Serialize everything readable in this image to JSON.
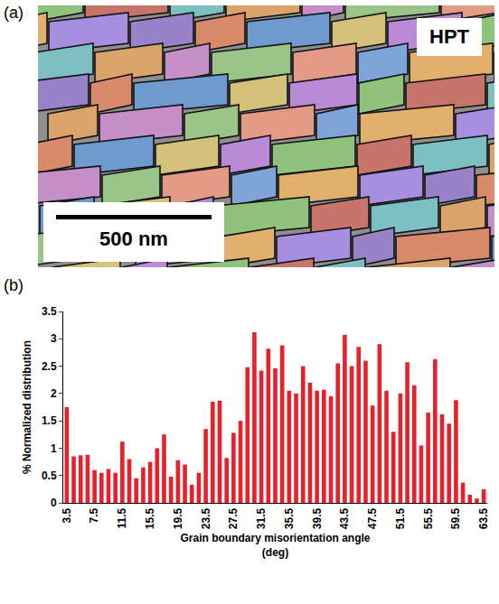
{
  "panel_a": {
    "label": "(a)",
    "inset_label": "HPT",
    "scale_bar": "500 nm"
  },
  "chart_data": {
    "label": "(b)",
    "type": "bar",
    "x": [
      3.5,
      4.5,
      5.5,
      6.5,
      7.5,
      8.5,
      9.5,
      10.5,
      11.5,
      12.5,
      13.5,
      14.5,
      15.5,
      16.5,
      17.5,
      18.5,
      19.5,
      20.5,
      21.5,
      22.5,
      23.5,
      24.5,
      25.5,
      26.5,
      27.5,
      28.5,
      29.5,
      30.5,
      31.5,
      32.5,
      33.5,
      34.5,
      35.5,
      36.5,
      37.5,
      38.5,
      39.5,
      40.5,
      41.5,
      42.5,
      43.5,
      44.5,
      45.5,
      46.5,
      47.5,
      48.5,
      49.5,
      50.5,
      51.5,
      52.5,
      53.5,
      54.5,
      55.5,
      56.5,
      57.5,
      58.5,
      59.5,
      60.5,
      61.5,
      62.5,
      63.5
    ],
    "values": [
      1.75,
      0.85,
      0.87,
      0.88,
      0.6,
      0.55,
      0.62,
      0.55,
      1.12,
      0.8,
      0.45,
      0.65,
      0.75,
      1.0,
      1.25,
      0.48,
      0.78,
      0.7,
      0.33,
      0.55,
      1.35,
      1.85,
      1.87,
      0.82,
      1.28,
      1.5,
      2.48,
      3.12,
      2.42,
      2.82,
      2.46,
      2.88,
      2.05,
      2.0,
      2.5,
      2.2,
      2.05,
      2.07,
      1.95,
      2.55,
      3.07,
      2.5,
      2.85,
      2.6,
      1.78,
      2.9,
      2.05,
      1.3,
      2.0,
      2.57,
      2.15,
      1.05,
      1.65,
      2.63,
      1.62,
      1.45,
      1.88,
      0.37,
      0.15,
      0.08,
      0.25
    ],
    "color": "#e8202a",
    "xlim": [
      3,
      64
    ],
    "xticks": [
      3.5,
      7.5,
      11.5,
      15.5,
      19.5,
      23.5,
      27.5,
      31.5,
      35.5,
      39.5,
      43.5,
      47.5,
      51.5,
      55.5,
      59.5,
      63.5
    ],
    "ylim": [
      0,
      3.5
    ],
    "yticks": [
      0,
      0.5,
      1,
      1.5,
      2,
      2.5,
      3,
      3.5
    ],
    "xlabel": "Grain boundary misorientation angle (deg)",
    "ylabel": "% Normalized distribution",
    "grid": false
  }
}
